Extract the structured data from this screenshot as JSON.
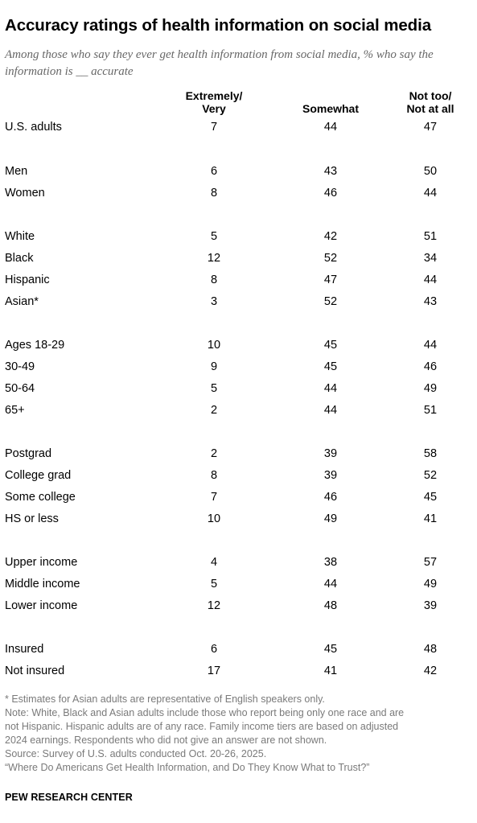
{
  "title": "Accuracy ratings of health information on social media",
  "subtitle": "Among those who say they ever get health information from social media, % who say the information is __ accurate",
  "chart_data": {
    "type": "table",
    "columns": [
      {
        "line1": "Extremely/",
        "line2": "Very"
      },
      {
        "line1": "",
        "line2": "Somewhat"
      },
      {
        "line1": "Not too/",
        "line2": "Not at all"
      }
    ],
    "rows": [
      {
        "label": "U.S. adults",
        "values": [
          "7",
          "44",
          "47"
        ]
      },
      {
        "label": "Men",
        "values": [
          "6",
          "43",
          "50"
        ]
      },
      {
        "label": "Women",
        "values": [
          "8",
          "46",
          "44"
        ]
      },
      {
        "label": "White",
        "values": [
          "5",
          "42",
          "51"
        ]
      },
      {
        "label": "Black",
        "values": [
          "12",
          "52",
          "34"
        ]
      },
      {
        "label": "Hispanic",
        "values": [
          "8",
          "47",
          "44"
        ]
      },
      {
        "label": "Asian*",
        "values": [
          "3",
          "52",
          "43"
        ]
      },
      {
        "label": "Ages 18-29",
        "values": [
          "10",
          "45",
          "44"
        ]
      },
      {
        "label": "30-49",
        "values": [
          "9",
          "45",
          "46"
        ]
      },
      {
        "label": "50-64",
        "values": [
          "5",
          "44",
          "49"
        ]
      },
      {
        "label": "65+",
        "values": [
          "2",
          "44",
          "51"
        ]
      },
      {
        "label": "Postgrad",
        "values": [
          "2",
          "39",
          "58"
        ]
      },
      {
        "label": "College grad",
        "values": [
          "8",
          "39",
          "52"
        ]
      },
      {
        "label": "Some college",
        "values": [
          "7",
          "46",
          "45"
        ]
      },
      {
        "label": "HS or less",
        "values": [
          "10",
          "49",
          "41"
        ]
      },
      {
        "label": "Upper income",
        "values": [
          "4",
          "38",
          "57"
        ]
      },
      {
        "label": "Middle income",
        "values": [
          "5",
          "44",
          "49"
        ]
      },
      {
        "label": "Lower income",
        "values": [
          "12",
          "48",
          "39"
        ]
      },
      {
        "label": "Insured",
        "values": [
          "6",
          "45",
          "48"
        ]
      },
      {
        "label": "Not insured",
        "values": [
          "17",
          "41",
          "42"
        ]
      }
    ]
  },
  "notes": [
    "* Estimates for Asian adults are representative of English speakers only.",
    "Note: White, Black and Asian adults include those who report being only one race and are",
    "not Hispanic. Hispanic adults are of any race. Family income tiers are based on adjusted",
    "2024 earnings. Respondents who did not give an answer are not shown.",
    "Source: Survey of U.S. adults conducted Oct. 20-26, 2025.",
    "“Where Do Americans Get Health Information, and Do They Know What to Trust?”"
  ],
  "brand": "PEW RESEARCH CENTER"
}
